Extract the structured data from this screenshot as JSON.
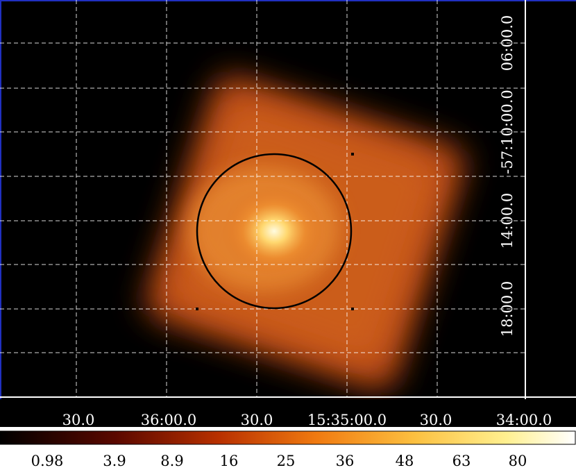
{
  "x_axis_labels": [
    "30.0",
    "36:00.0",
    "30.0",
    "15:35:00.0",
    "30.0",
    "34:00.0"
  ],
  "y_axis_labels": [
    "06:00.0",
    "-57:10:00.0",
    "14:00.0",
    "18:00.0"
  ],
  "colorbar_labels": [
    "0.98",
    "3.9",
    "8.9",
    "16",
    "25",
    "36",
    "48",
    "63",
    "80"
  ]
}
